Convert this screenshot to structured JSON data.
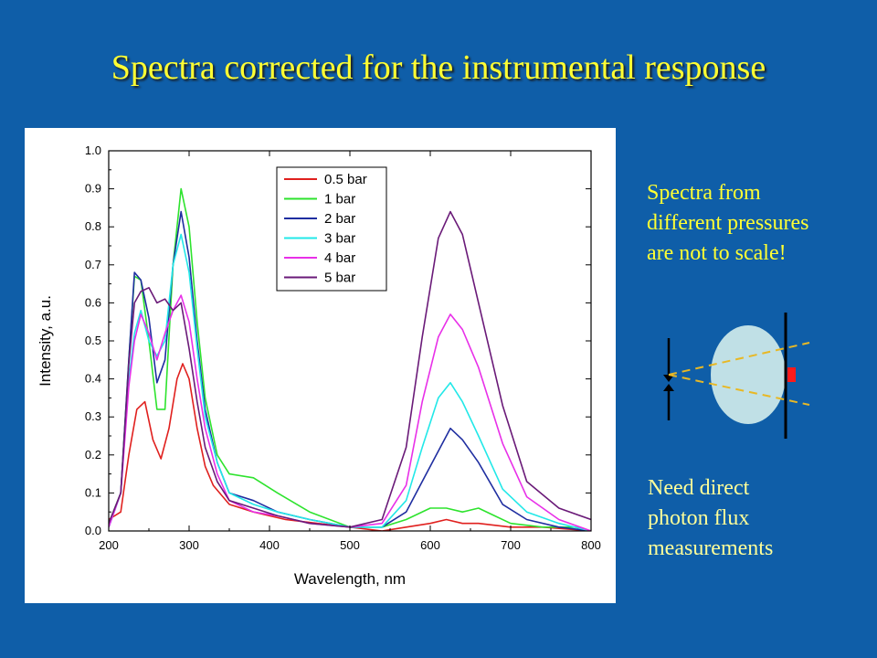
{
  "slide": {
    "title": "Spectra corrected for the instrumental response"
  },
  "notes": {
    "top_lines": [
      "Spectra from",
      "different pressures",
      "are not to scale!"
    ],
    "bottom_lines": [
      "Need direct",
      "photon flux",
      "measurements"
    ]
  },
  "colors": {
    "background": "#0f5ea8",
    "title": "#ffff33",
    "note_top": "#ffff33",
    "note_bottom": "#ffff99"
  },
  "diagram": {
    "icons": [
      "up-arrow-icon",
      "down-arrow-icon",
      "lens-ellipse",
      "screen-line",
      "red-detector",
      "dashed-beam-lines"
    ]
  },
  "chart_data": {
    "type": "line",
    "xlabel": "Wavelength, nm",
    "ylabel": "Intensity, a.u.",
    "xlim": [
      200,
      800
    ],
    "ylim": [
      0.0,
      1.0
    ],
    "xticks": [
      200,
      300,
      400,
      500,
      600,
      700,
      800
    ],
    "yticks": [
      "0.0",
      "0.1",
      "0.2",
      "0.3",
      "0.4",
      "0.5",
      "0.6",
      "0.7",
      "0.8",
      "0.9",
      "1.0"
    ],
    "legend_position": "top-center",
    "series": [
      {
        "name": "0.5 bar",
        "color": "#e0201e",
        "x": [
          200,
          215,
          225,
          235,
          245,
          255,
          265,
          275,
          285,
          292,
          300,
          310,
          320,
          330,
          350,
          380,
          420,
          460,
          500,
          540,
          570,
          600,
          620,
          640,
          660,
          700,
          740,
          800
        ],
        "y": [
          0.03,
          0.05,
          0.2,
          0.32,
          0.34,
          0.24,
          0.19,
          0.27,
          0.4,
          0.44,
          0.4,
          0.27,
          0.17,
          0.12,
          0.07,
          0.05,
          0.03,
          0.02,
          0.01,
          0.0,
          0.01,
          0.02,
          0.03,
          0.02,
          0.02,
          0.01,
          0.01,
          0.0
        ]
      },
      {
        "name": "1 bar",
        "color": "#2ee32e",
        "x": [
          200,
          215,
          225,
          232,
          240,
          250,
          260,
          270,
          280,
          290,
          300,
          310,
          320,
          335,
          350,
          380,
          410,
          450,
          500,
          540,
          570,
          600,
          620,
          640,
          660,
          680,
          700,
          740,
          780,
          800
        ],
        "y": [
          0.02,
          0.1,
          0.45,
          0.67,
          0.66,
          0.5,
          0.32,
          0.32,
          0.7,
          0.9,
          0.8,
          0.55,
          0.35,
          0.2,
          0.15,
          0.14,
          0.1,
          0.05,
          0.01,
          0.01,
          0.03,
          0.06,
          0.06,
          0.05,
          0.06,
          0.04,
          0.02,
          0.01,
          0.01,
          0.0
        ]
      },
      {
        "name": "2 bar",
        "color": "#1f2ea0",
        "x": [
          200,
          215,
          225,
          232,
          240,
          250,
          260,
          270,
          280,
          290,
          300,
          310,
          320,
          335,
          350,
          380,
          410,
          450,
          500,
          540,
          570,
          590,
          610,
          625,
          640,
          660,
          690,
          720,
          760,
          800
        ],
        "y": [
          0.01,
          0.1,
          0.45,
          0.68,
          0.66,
          0.56,
          0.39,
          0.45,
          0.7,
          0.84,
          0.72,
          0.5,
          0.32,
          0.18,
          0.1,
          0.08,
          0.05,
          0.03,
          0.01,
          0.01,
          0.05,
          0.13,
          0.21,
          0.27,
          0.24,
          0.18,
          0.07,
          0.03,
          0.01,
          0.0
        ]
      },
      {
        "name": "3 bar",
        "color": "#22e8e8",
        "x": [
          200,
          215,
          225,
          232,
          240,
          250,
          260,
          270,
          280,
          290,
          300,
          310,
          320,
          335,
          350,
          380,
          410,
          450,
          500,
          540,
          570,
          590,
          610,
          625,
          640,
          660,
          690,
          720,
          760,
          800
        ],
        "y": [
          0.01,
          0.1,
          0.4,
          0.52,
          0.58,
          0.5,
          0.46,
          0.5,
          0.7,
          0.78,
          0.68,
          0.48,
          0.3,
          0.18,
          0.1,
          0.07,
          0.05,
          0.03,
          0.01,
          0.01,
          0.08,
          0.22,
          0.35,
          0.39,
          0.34,
          0.25,
          0.11,
          0.05,
          0.02,
          0.0
        ]
      },
      {
        "name": "4 bar",
        "color": "#e830e8",
        "x": [
          200,
          215,
          225,
          232,
          240,
          250,
          260,
          270,
          280,
          290,
          300,
          310,
          320,
          335,
          350,
          380,
          410,
          450,
          500,
          540,
          570,
          590,
          610,
          625,
          640,
          660,
          690,
          720,
          760,
          800
        ],
        "y": [
          0.01,
          0.1,
          0.38,
          0.5,
          0.57,
          0.52,
          0.45,
          0.52,
          0.58,
          0.62,
          0.55,
          0.4,
          0.27,
          0.15,
          0.08,
          0.05,
          0.04,
          0.02,
          0.01,
          0.02,
          0.12,
          0.34,
          0.51,
          0.57,
          0.53,
          0.43,
          0.23,
          0.09,
          0.03,
          0.0
        ]
      },
      {
        "name": "5 bar",
        "color": "#6a1a78",
        "x": [
          200,
          215,
          225,
          232,
          240,
          250,
          260,
          270,
          280,
          290,
          300,
          310,
          320,
          335,
          350,
          380,
          410,
          450,
          500,
          540,
          570,
          590,
          610,
          625,
          640,
          660,
          690,
          720,
          760,
          800
        ],
        "y": [
          0.02,
          0.1,
          0.44,
          0.6,
          0.63,
          0.64,
          0.6,
          0.61,
          0.58,
          0.6,
          0.48,
          0.34,
          0.22,
          0.13,
          0.08,
          0.06,
          0.04,
          0.02,
          0.01,
          0.03,
          0.22,
          0.51,
          0.77,
          0.84,
          0.78,
          0.6,
          0.33,
          0.13,
          0.06,
          0.03
        ]
      }
    ]
  }
}
